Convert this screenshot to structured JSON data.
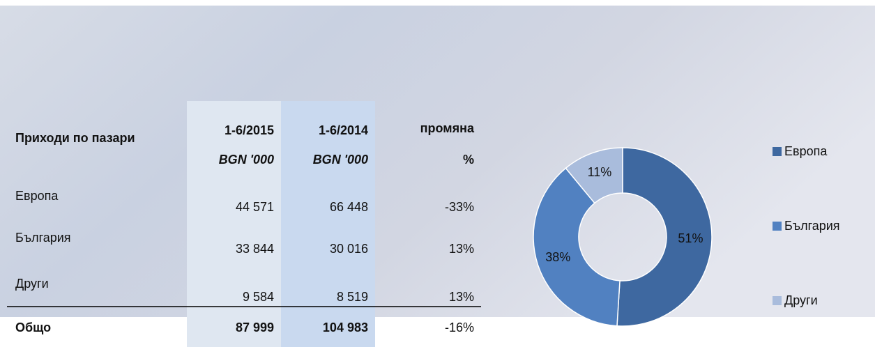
{
  "table": {
    "header": {
      "label": "Приходи по пазари",
      "col1": [
        "1-6/2015",
        "BGN '000"
      ],
      "col2": [
        "1-6/2014",
        "BGN '000"
      ],
      "col3": [
        "промяна",
        "%"
      ]
    },
    "rows": [
      [
        "Европа",
        "44 571",
        "66 448",
        "-33%"
      ],
      [
        "България",
        "33 844",
        "30 016",
        "13%"
      ],
      [
        "Други",
        "9 584",
        "8 519",
        "13%"
      ]
    ],
    "total": [
      "Общо",
      "87 999",
      "104 983",
      "-16%"
    ]
  },
  "chart_data": {
    "type": "donut",
    "categories": [
      "Европа",
      "България",
      "Други"
    ],
    "values": [
      51,
      38,
      11
    ],
    "value_labels": [
      "51%",
      "38%",
      "11%"
    ],
    "colors": [
      "#3e68a0",
      "#5181c1",
      "#a9bcdc"
    ],
    "legend": "right"
  }
}
